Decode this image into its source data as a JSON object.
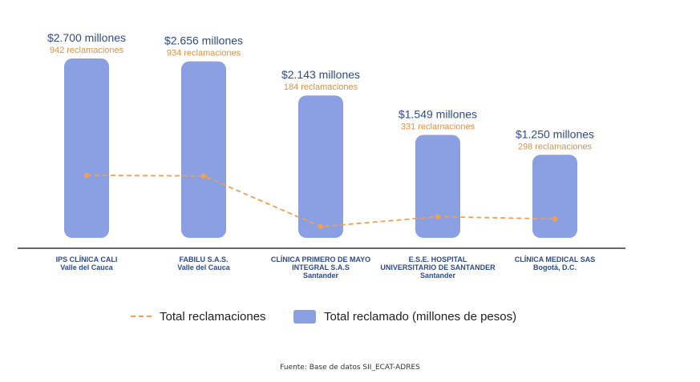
{
  "colors": {
    "bar": "#8b9fe3",
    "line": "#f0a050",
    "value_text": "#2e4a8c",
    "count_text": "#e09040",
    "category_text": "#2e4a8c",
    "axis": "#333333"
  },
  "chart_data": {
    "type": "bar",
    "categories": [
      [
        "IPS CLÍNICA CALI",
        "Valle del Cauca"
      ],
      [
        "FABILU S.A.S.",
        "Valle del Cauca"
      ],
      [
        "CLÍNICA PRIMERO DE MAYO",
        "INTEGRAL S.A.S",
        "Santander"
      ],
      [
        "E.S.E. HOSPITAL",
        "UNIVERSITARIO DE SANTANDER",
        "Santander"
      ],
      [
        "CLÍNICA MEDICAL SAS",
        "Bogotá, D.C."
      ]
    ],
    "series": [
      {
        "name": "Total reclamado (millones de pesos)",
        "type": "bar",
        "values": [
          2700,
          2656,
          2143,
          1549,
          1250
        ]
      },
      {
        "name": "Total reclamaciones",
        "type": "line",
        "values": [
          942,
          934,
          184,
          331,
          298
        ]
      }
    ],
    "value_labels": [
      "$2.700 millones",
      "$2.656 millones",
      "$2.143 millones",
      "$1.549 millones",
      "$1.250 millones"
    ],
    "count_labels": [
      "942 reclamaciones",
      "934 reclamaciones",
      "184 reclamaciones",
      "331 reclamaciones",
      "298 reclamaciones"
    ],
    "legend": {
      "line_label": "Total reclamaciones",
      "bar_label": "Total reclamado (millones de pesos)"
    },
    "ylim_bar": [
      0,
      2700
    ],
    "ylim_line": [
      0,
      1200
    ],
    "source": "Fuente: Base de datos SII_ECAT-ADRES"
  }
}
